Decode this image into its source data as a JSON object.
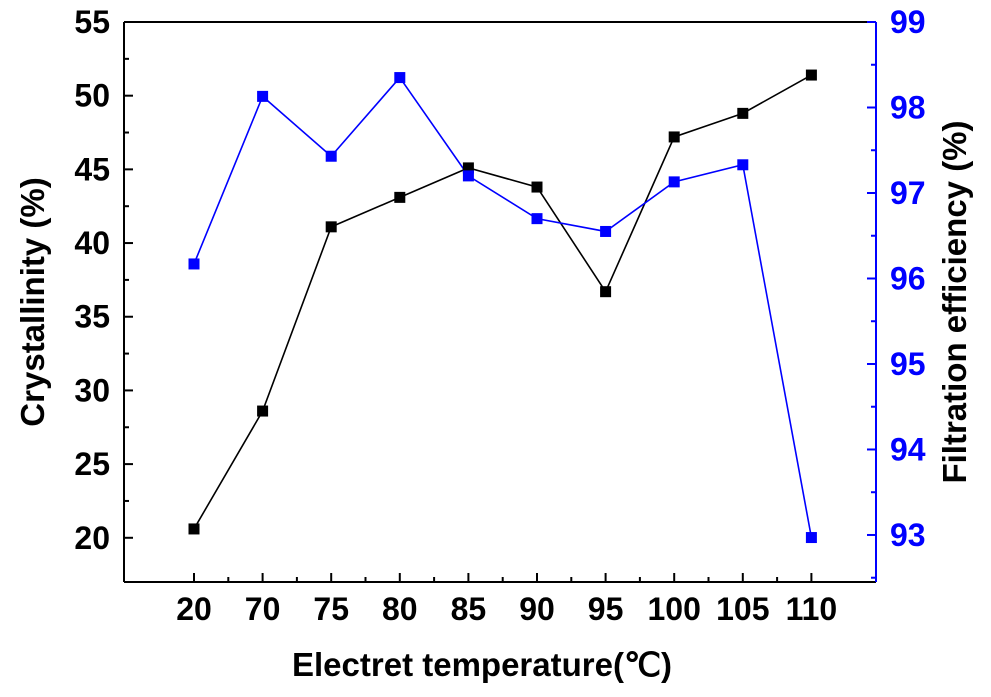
{
  "chart_data": {
    "type": "line",
    "title": "",
    "categories": [
      "20",
      "70",
      "75",
      "80",
      "85",
      "90",
      "95",
      "100",
      "105",
      "110"
    ],
    "xlabel": "Electret temperature(℃)",
    "ylabel_left": "Crystallinity (%)",
    "ylabel_right": "Filtration efficiency (%)",
    "ylim_left": [
      17,
      55
    ],
    "yticks_left": [
      "20",
      "25",
      "30",
      "35",
      "40",
      "45",
      "50",
      "55"
    ],
    "ylim_right": [
      92.45,
      99
    ],
    "yticks_right": [
      "93",
      "94",
      "95",
      "96",
      "97",
      "98",
      "99"
    ],
    "grid": false,
    "legend": "none",
    "series": [
      {
        "axis": "left",
        "color": "#000000",
        "marker": "square",
        "values": [
          20.6,
          28.6,
          41.1,
          43.1,
          45.1,
          43.8,
          36.7,
          47.2,
          48.8,
          51.4
        ]
      },
      {
        "axis": "right",
        "color": "#0000ff",
        "marker": "square",
        "values": [
          96.17,
          98.13,
          97.43,
          98.35,
          97.2,
          96.7,
          96.55,
          97.13,
          97.33,
          92.97
        ]
      }
    ]
  }
}
